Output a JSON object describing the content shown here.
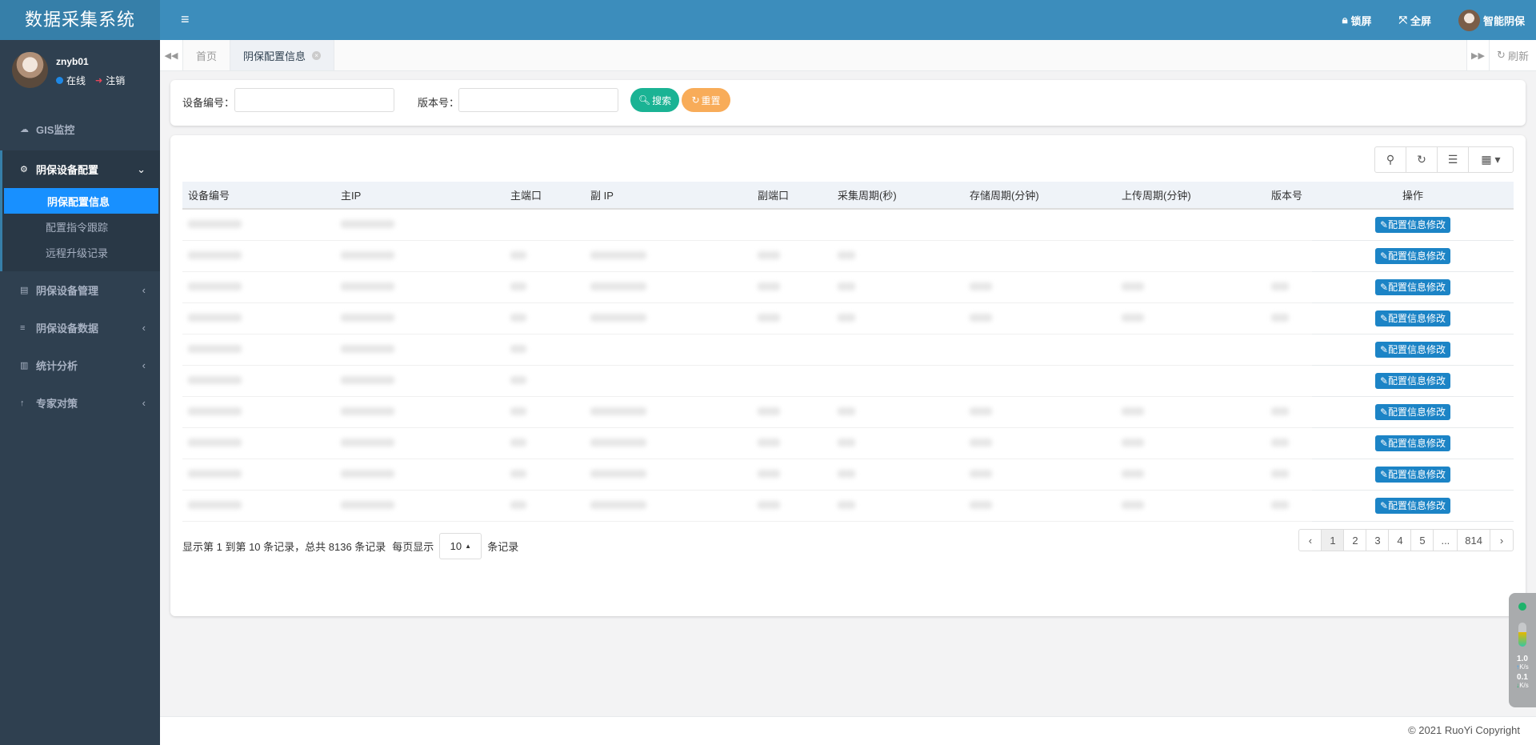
{
  "app_title": "数据采集系统",
  "user": {
    "name": "znyb01",
    "status": "在线",
    "logout": "注销"
  },
  "sidebar": {
    "items": [
      {
        "label": "GIS监控",
        "icon": "cloud-icon"
      },
      {
        "label": "阴保设备配置",
        "icon": "config-icon",
        "expanded": true,
        "children": [
          {
            "label": "阴保配置信息",
            "active": true
          },
          {
            "label": "配置指令跟踪"
          },
          {
            "label": "远程升级记录"
          }
        ]
      },
      {
        "label": "阴保设备管理",
        "icon": "id-card-icon"
      },
      {
        "label": "阴保设备数据",
        "icon": "list-icon"
      },
      {
        "label": "统计分析",
        "icon": "bar-chart-icon"
      },
      {
        "label": "专家对策",
        "icon": "pin-icon"
      }
    ]
  },
  "topbar": {
    "lock": "锁屏",
    "fullscreen": "全屏",
    "account": "智能阴保"
  },
  "tabs": {
    "items": [
      {
        "label": "首页"
      },
      {
        "label": "阴保配置信息",
        "active": true
      }
    ],
    "refresh": "刷新"
  },
  "search": {
    "device_label": "设备编号：",
    "device_value": "",
    "version_label": "版本号：",
    "version_value": "",
    "search_btn": "搜索",
    "reset_btn": "重置"
  },
  "table": {
    "columns": [
      "设备编号",
      "主IP",
      "主端口",
      "副 IP",
      "副端口",
      "采集周期(秒)",
      "存储周期(分钟)",
      "上传周期(分钟)",
      "版本号",
      "操作"
    ],
    "action_label": "配置信息修改",
    "rows_redacted_cells": [
      [
        true,
        true,
        false,
        false,
        false,
        false,
        false,
        false,
        false
      ],
      [
        true,
        true,
        true,
        true,
        true,
        true,
        false,
        false,
        false
      ],
      [
        true,
        true,
        true,
        true,
        true,
        true,
        true,
        true,
        true
      ],
      [
        true,
        true,
        true,
        true,
        true,
        true,
        true,
        true,
        true
      ],
      [
        true,
        true,
        true,
        false,
        false,
        false,
        false,
        false,
        false
      ],
      [
        true,
        true,
        true,
        false,
        false,
        false,
        false,
        false,
        false
      ],
      [
        true,
        true,
        true,
        true,
        true,
        true,
        true,
        true,
        true
      ],
      [
        true,
        true,
        true,
        true,
        true,
        true,
        true,
        true,
        true
      ],
      [
        true,
        true,
        true,
        true,
        true,
        true,
        true,
        true,
        true
      ],
      [
        true,
        true,
        true,
        true,
        true,
        true,
        true,
        true,
        true
      ]
    ]
  },
  "pagination": {
    "info": "显示第 1 到第 10 条记录，总共 8136 条记录",
    "per_page_prefix": "每页显示",
    "per_page": "10",
    "per_page_suffix": "条记录",
    "pages": [
      "‹",
      "1",
      "2",
      "3",
      "4",
      "5",
      "...",
      "814",
      "›"
    ],
    "current": "1"
  },
  "footer": "© 2021 RuoYi Copyright",
  "net_widget": {
    "up": "1.0",
    "down": "0.1",
    "unit": "K/s"
  },
  "colors": {
    "topbar": "#3c8dbc",
    "sidebar": "#2f4050",
    "active": "#1890ff",
    "search_btn": "#1ab394",
    "reset_btn": "#f8ac59",
    "edit_btn": "#1c84c6"
  }
}
